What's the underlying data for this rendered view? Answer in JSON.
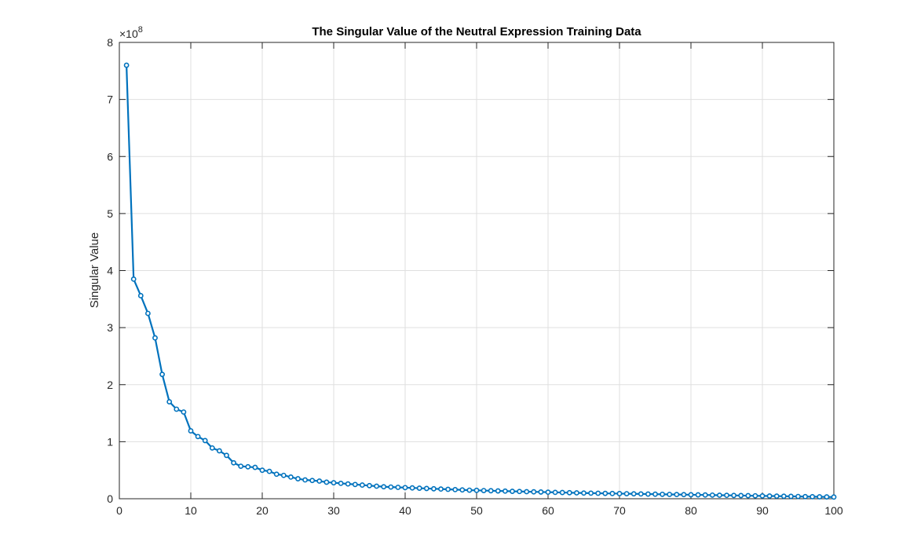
{
  "chart_data": {
    "type": "line",
    "title": "The Singular Value of the Neutral Expression Training Data",
    "xlabel": "",
    "ylabel": "Singular Value",
    "y_exponent_label": "×10",
    "y_exponent_power": "8",
    "xlim": [
      0,
      100
    ],
    "ylim": [
      0,
      8
    ],
    "y_scale_factor": 100000000,
    "grid": true,
    "legend": "none",
    "x_ticks": [
      "0",
      "10",
      "20",
      "30",
      "40",
      "50",
      "60",
      "70",
      "80",
      "90",
      "100"
    ],
    "y_ticks": [
      "0",
      "1",
      "2",
      "3",
      "4",
      "5",
      "6",
      "7",
      "8"
    ],
    "series": [
      {
        "color": "#0072BD",
        "marker": "circle",
        "x": [
          1,
          2,
          3,
          4,
          5,
          6,
          7,
          8,
          9,
          10,
          11,
          12,
          13,
          14,
          15,
          16,
          17,
          18,
          19,
          20,
          21,
          22,
          23,
          24,
          25,
          26,
          27,
          28,
          29,
          30,
          31,
          32,
          33,
          34,
          35,
          36,
          37,
          38,
          39,
          40,
          41,
          42,
          43,
          44,
          45,
          46,
          47,
          48,
          49,
          50,
          51,
          52,
          53,
          54,
          55,
          56,
          57,
          58,
          59,
          60,
          61,
          62,
          63,
          64,
          65,
          66,
          67,
          68,
          69,
          70,
          71,
          72,
          73,
          74,
          75,
          76,
          77,
          78,
          79,
          80,
          81,
          82,
          83,
          84,
          85,
          86,
          87,
          88,
          89,
          90,
          91,
          92,
          93,
          94,
          95,
          96,
          97,
          98,
          99,
          100
        ],
        "values": [
          7.6,
          3.85,
          3.56,
          3.25,
          2.82,
          2.18,
          1.7,
          1.57,
          1.52,
          1.19,
          1.09,
          1.02,
          0.89,
          0.84,
          0.76,
          0.63,
          0.57,
          0.56,
          0.55,
          0.5,
          0.48,
          0.43,
          0.41,
          0.38,
          0.35,
          0.33,
          0.32,
          0.31,
          0.29,
          0.28,
          0.27,
          0.26,
          0.25,
          0.24,
          0.23,
          0.22,
          0.21,
          0.205,
          0.2,
          0.195,
          0.19,
          0.185,
          0.18,
          0.175,
          0.17,
          0.165,
          0.16,
          0.155,
          0.15,
          0.147,
          0.143,
          0.14,
          0.137,
          0.134,
          0.13,
          0.127,
          0.124,
          0.121,
          0.118,
          0.115,
          0.112,
          0.109,
          0.106,
          0.103,
          0.1,
          0.098,
          0.096,
          0.094,
          0.092,
          0.09,
          0.088,
          0.086,
          0.084,
          0.082,
          0.08,
          0.078,
          0.076,
          0.074,
          0.072,
          0.07,
          0.068,
          0.066,
          0.064,
          0.062,
          0.06,
          0.058,
          0.056,
          0.054,
          0.052,
          0.05,
          0.048,
          0.046,
          0.044,
          0.042,
          0.04,
          0.038,
          0.036,
          0.034,
          0.032,
          0.03
        ]
      }
    ]
  }
}
